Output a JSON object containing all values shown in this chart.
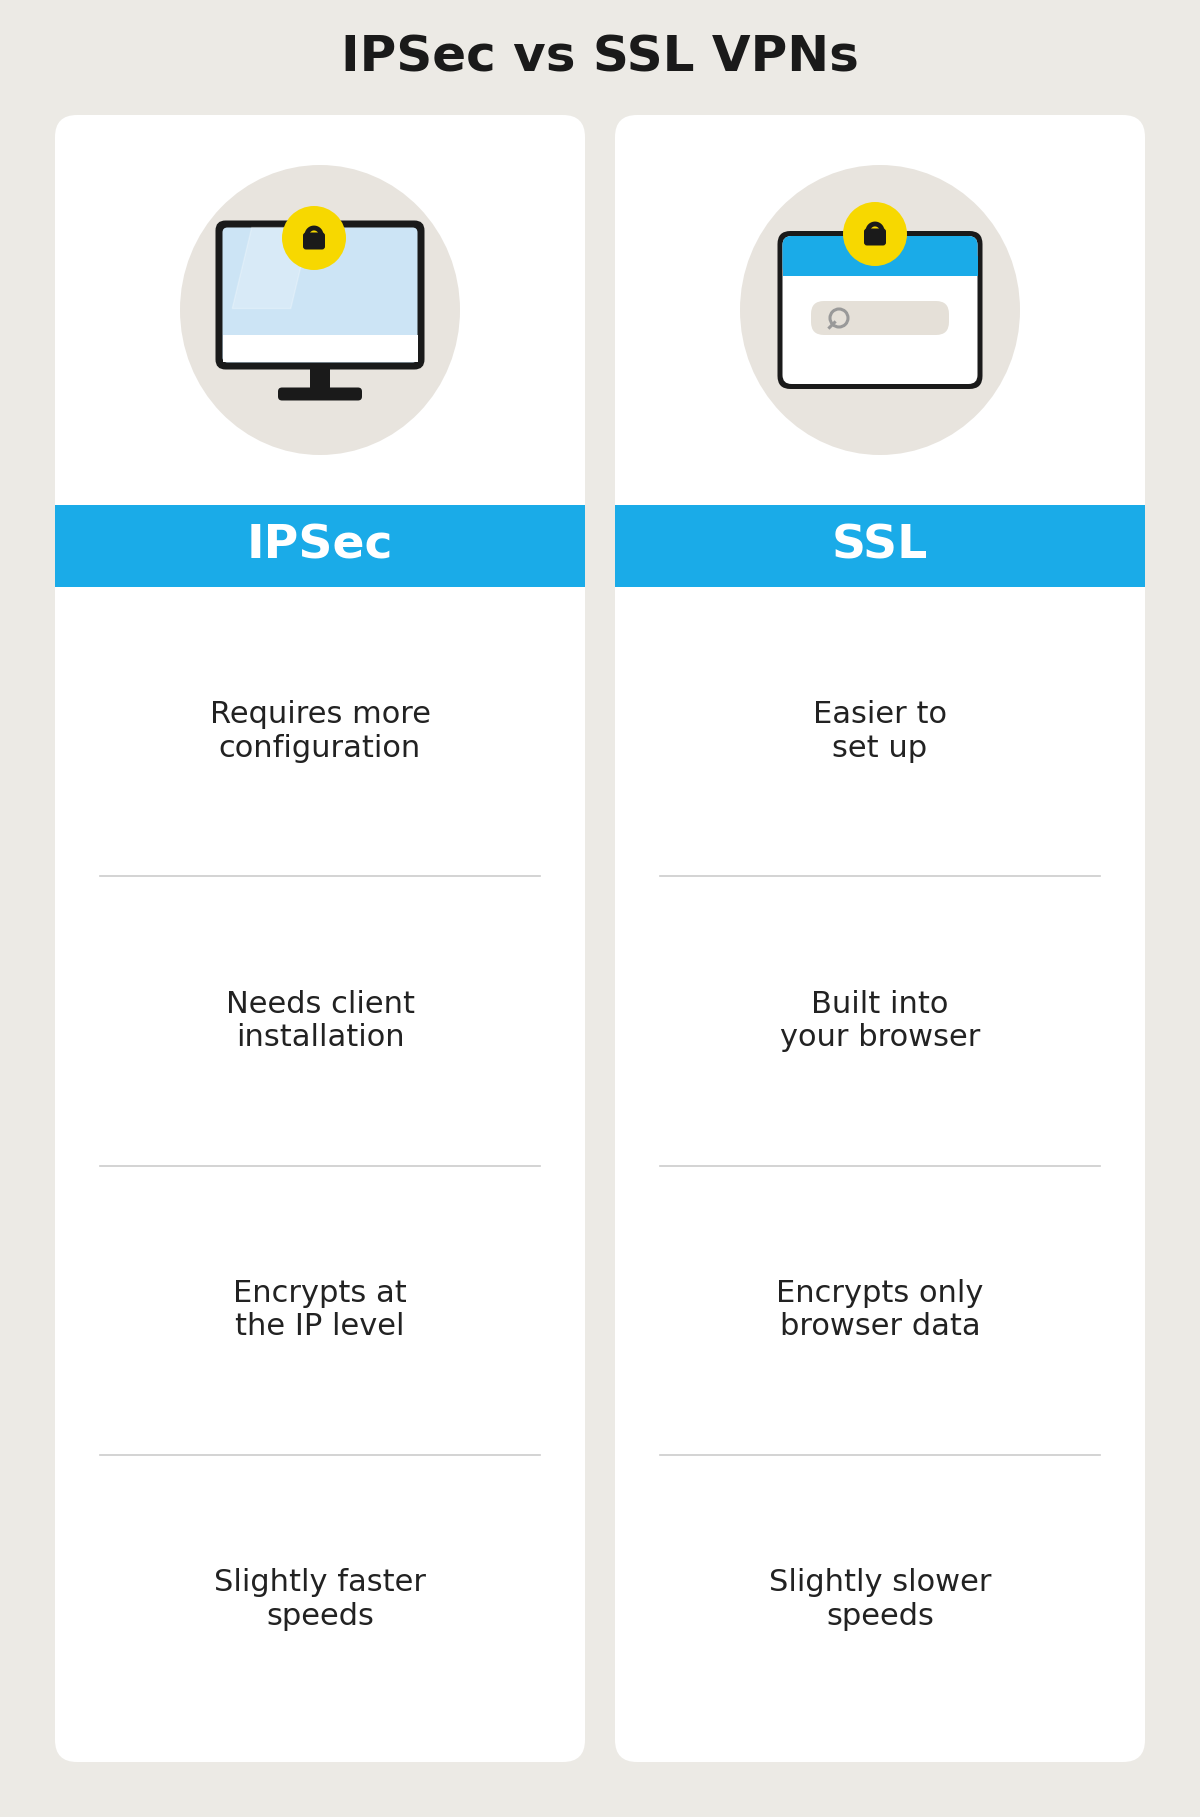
{
  "title": "IPSec vs SSL VPNs",
  "title_fontsize": 36,
  "background_color": "#eceae5",
  "card_color": "#ffffff",
  "header_color": "#1aabe8",
  "header_text_color": "#ffffff",
  "header_fontsize": 34,
  "body_text_color": "#222222",
  "body_fontsize": 22,
  "left_header": "IPSec",
  "right_header": "SSL",
  "left_items": [
    "Requires more\nconfiguration",
    "Needs client\ninstallation",
    "Encrypts at\nthe IP level",
    "Slightly faster\nspeeds"
  ],
  "right_items": [
    "Easier to\nset up",
    "Built into\nyour browser",
    "Encrypts only\nbrowser data",
    "Slightly slower\nspeeds"
  ],
  "icon_circle_color": "#e8e4de",
  "lock_badge_color": "#f7d800",
  "monitor_screen_color": "#cce4f5",
  "browser_bar_color": "#1aabe8",
  "browser_search_color": "#e5e0d8",
  "separator_color": "#cccccc",
  "fig_width": 12.0,
  "fig_height": 18.17,
  "dpi": 100
}
